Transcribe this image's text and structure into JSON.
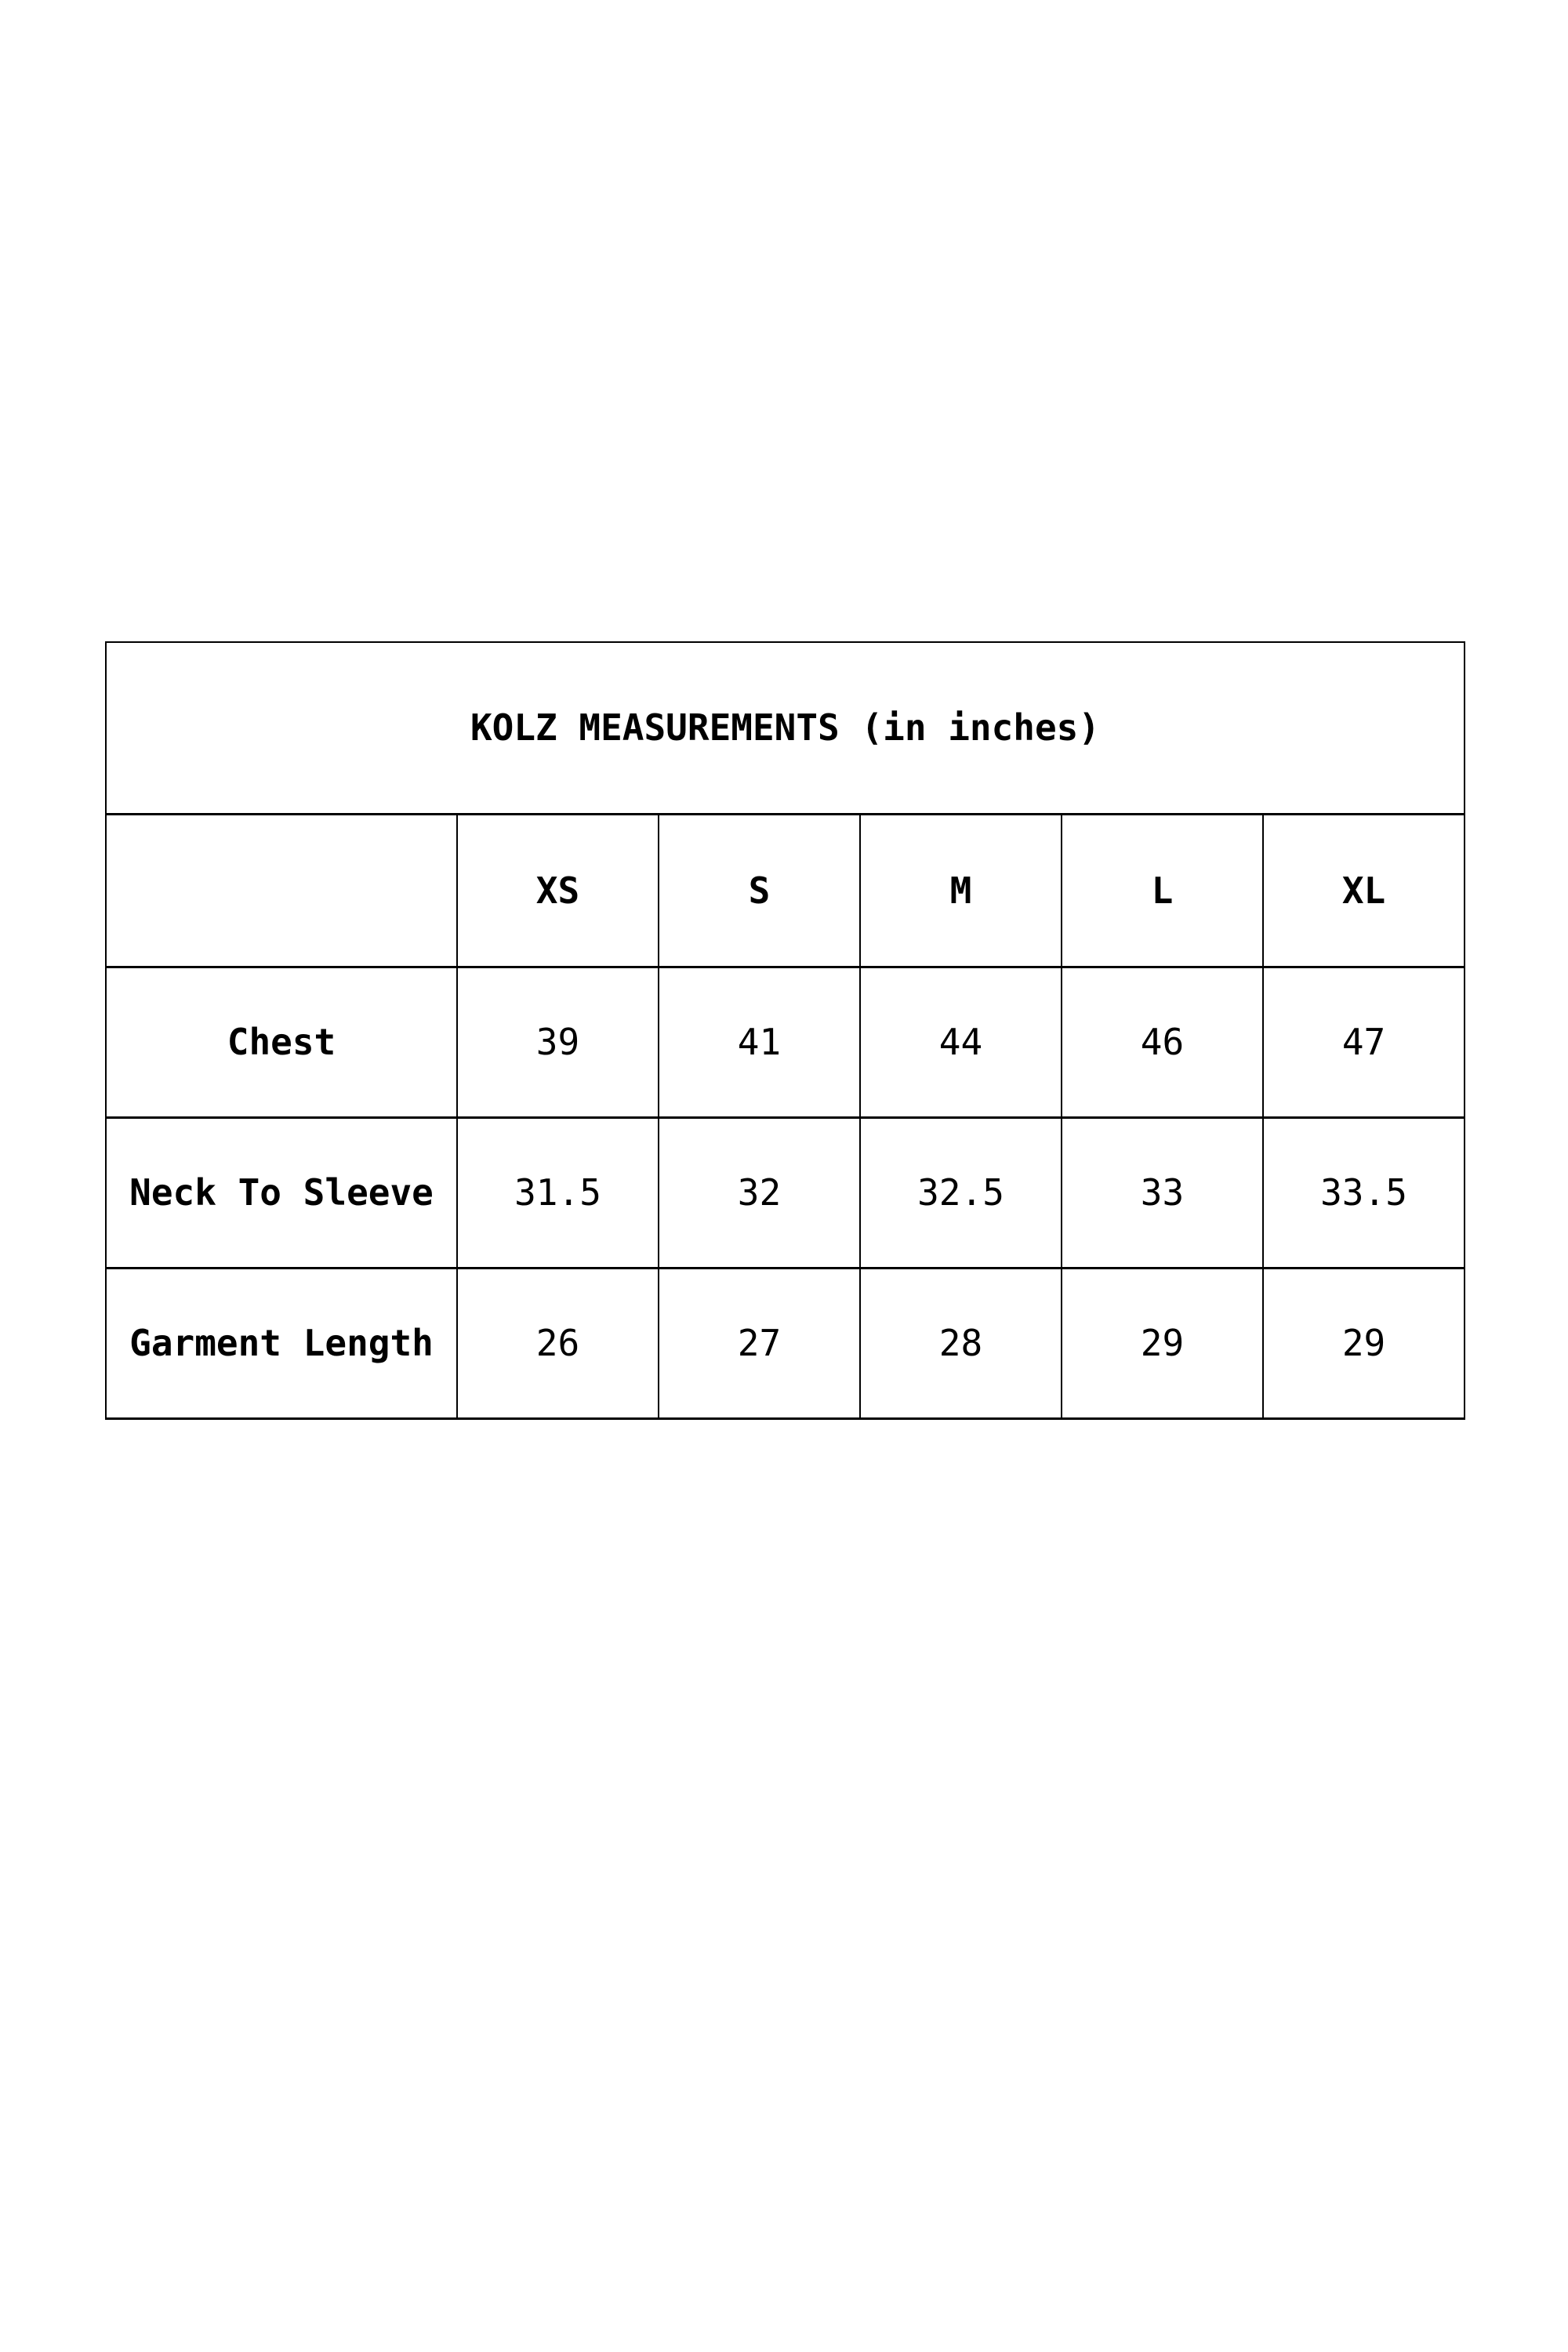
{
  "page": {
    "background_color": "#ffffff",
    "text_color": "#000000"
  },
  "size_chart": {
    "title": "KOLZ MEASUREMENTS (in inches)",
    "sizes": [
      "XS",
      "S",
      "M",
      "L",
      "XL"
    ],
    "rows": [
      {
        "label": "Chest",
        "values": [
          "39",
          "41",
          "44",
          "46",
          "47"
        ]
      },
      {
        "label": "Neck To Sleeve",
        "values": [
          "31.5",
          "32",
          "32.5",
          "33",
          "33.5"
        ]
      },
      {
        "label": "Garment Length",
        "values": [
          "26",
          "27",
          "28",
          "29",
          "29"
        ]
      }
    ]
  }
}
